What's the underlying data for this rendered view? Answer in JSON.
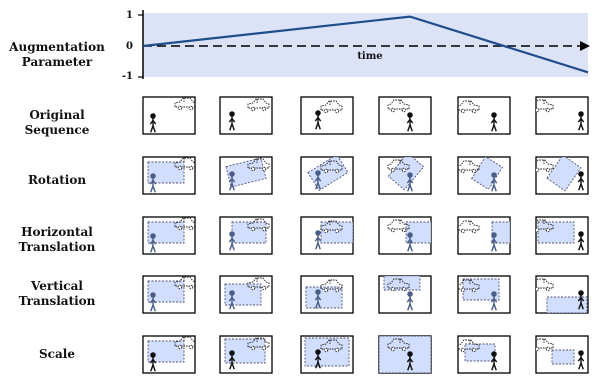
{
  "rows": [
    {
      "id": "augmentation",
      "label_lines": [
        "Augmentation",
        "Parameter"
      ]
    },
    {
      "id": "original",
      "label_lines": [
        "Original",
        "Sequence"
      ]
    },
    {
      "id": "rotation",
      "label_lines": [
        "Rotation"
      ]
    },
    {
      "id": "htrans",
      "label_lines": [
        "Horizontal",
        "Translation"
      ]
    },
    {
      "id": "vtrans",
      "label_lines": [
        "Vertical",
        "Translation"
      ]
    },
    {
      "id": "scale",
      "label_lines": [
        "Scale"
      ]
    }
  ],
  "chart_data": {
    "type": "line",
    "x": [
      0,
      0.6,
      1
    ],
    "series": [
      {
        "values": [
          0,
          0.95,
          -0.85
        ]
      }
    ],
    "xlabel": "time",
    "ylabel": "",
    "yticks": [
      1,
      0,
      -1
    ],
    "colors": {
      "line": "#1f4e8c",
      "background": "#dde3f7"
    }
  },
  "colors": {
    "box_fill": "#c9d8ff",
    "box_border": "#555577",
    "frame": "#000000"
  }
}
